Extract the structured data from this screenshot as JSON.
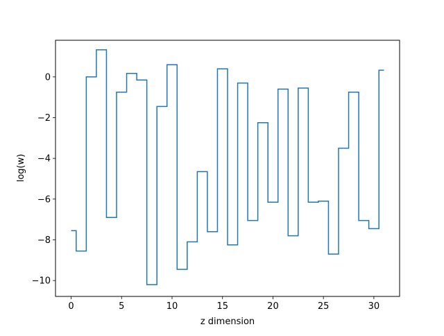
{
  "chart_data": {
    "type": "line",
    "drawstyle": "steps-mid",
    "xlabel": "z dimension",
    "ylabel": "log(w)",
    "xlim": [
      -1.55,
      32.55
    ],
    "ylim": [
      -10.78,
      1.8
    ],
    "xticks": [
      0,
      5,
      10,
      15,
      20,
      25,
      30
    ],
    "yticks": [
      -10,
      -8,
      -6,
      -4,
      -2,
      0
    ],
    "grid": false,
    "x": [
      0,
      1,
      2,
      3,
      4,
      5,
      6,
      7,
      8,
      9,
      10,
      11,
      12,
      13,
      14,
      15,
      16,
      17,
      18,
      19,
      20,
      21,
      22,
      23,
      24,
      25,
      26,
      27,
      28,
      29,
      30,
      31
    ],
    "series": [
      {
        "color": "#1f77b4",
        "values": [
          -7.55,
          -8.55,
          0.0,
          1.33,
          -6.9,
          -0.75,
          0.17,
          -0.15,
          -10.2,
          -1.45,
          0.6,
          -9.45,
          -8.1,
          -4.65,
          -7.6,
          0.4,
          -8.25,
          -0.3,
          -7.05,
          -2.25,
          -6.15,
          -0.6,
          -7.8,
          -0.55,
          -6.15,
          -6.1,
          -8.7,
          -3.5,
          -0.75,
          -7.05,
          -7.45,
          0.33
        ]
      }
    ]
  }
}
